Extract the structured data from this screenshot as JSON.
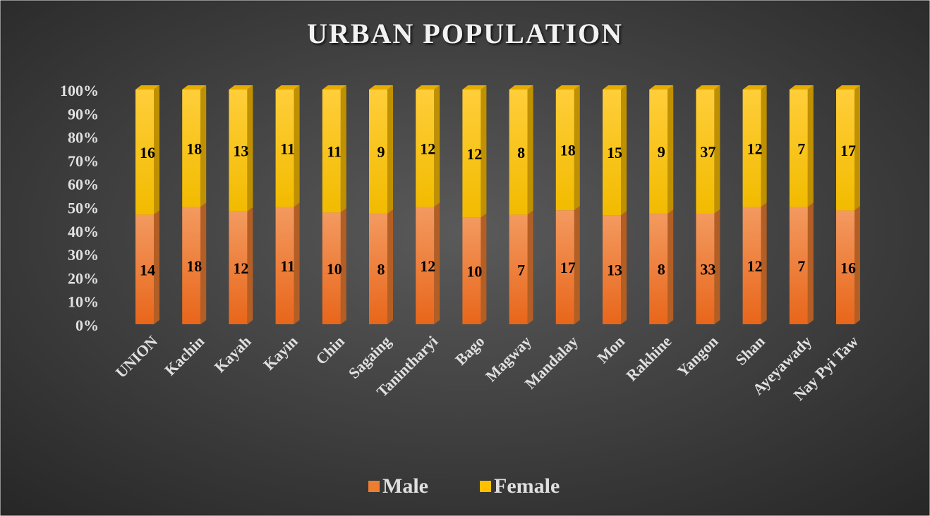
{
  "chart_data": {
    "type": "bar",
    "stacked": "percent",
    "title": "URBAN POPULATION",
    "categories": [
      "UNION",
      "Kachin",
      "Kayah",
      "Kayin",
      "Chin",
      "Sagaing",
      "Tanintharyi",
      "Bago",
      "Magway",
      "Mandalay",
      "Mon",
      "Rakhine",
      "Yangon",
      "Shan",
      "Ayeyawady",
      "Nay Pyi Taw"
    ],
    "series": [
      {
        "name": "Male",
        "color": "#ed7d31",
        "values": [
          14,
          18,
          12,
          11,
          10,
          8,
          12,
          10,
          7,
          17,
          13,
          8,
          33,
          12,
          7,
          16
        ]
      },
      {
        "name": "Female",
        "color": "#ffc000",
        "values": [
          16,
          18,
          13,
          11,
          11,
          9,
          12,
          12,
          8,
          18,
          15,
          9,
          37,
          12,
          7,
          17
        ]
      }
    ],
    "ylim": [
      0,
      100
    ],
    "yticks": [
      {
        "value": 0,
        "label": "0%"
      },
      {
        "value": 10,
        "label": "10%"
      },
      {
        "value": 20,
        "label": "20%"
      },
      {
        "value": 30,
        "label": "30%"
      },
      {
        "value": 40,
        "label": "40%"
      },
      {
        "value": 50,
        "label": "50%"
      },
      {
        "value": 60,
        "label": "60%"
      },
      {
        "value": 70,
        "label": "70%"
      },
      {
        "value": 80,
        "label": "80%"
      },
      {
        "value": 90,
        "label": "90%"
      },
      {
        "value": 100,
        "label": "100%"
      }
    ],
    "grid": false,
    "legend": "bottom"
  }
}
